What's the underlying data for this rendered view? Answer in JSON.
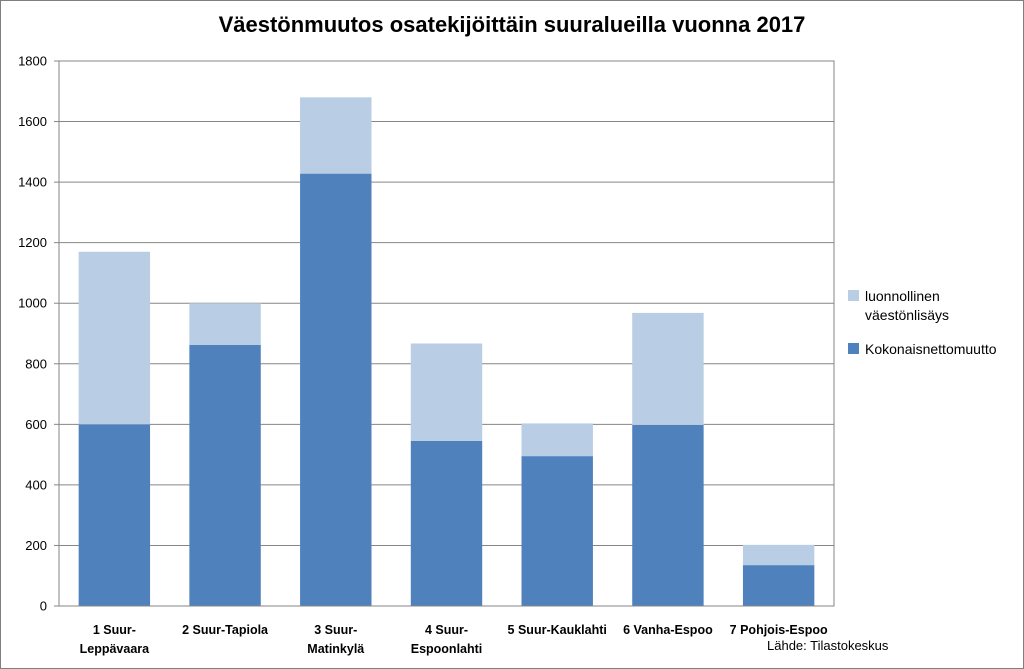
{
  "chart_data": {
    "type": "bar",
    "stacked": true,
    "title": "Väestönmuutos osatekijöittäin suuralueilla vuonna 2017",
    "xlabel": "",
    "ylabel": "",
    "ylim": [
      0,
      1800
    ],
    "yticks": [
      "0",
      "200",
      "400",
      "600",
      "800",
      "1000",
      "1200",
      "1400",
      "1600",
      "1800"
    ],
    "grid": true,
    "legend_position": "right",
    "categories": [
      [
        "1 Suur-",
        "Leppävaara"
      ],
      [
        "2 Suur-Tapiola"
      ],
      [
        "3 Suur-",
        "Matinkylä"
      ],
      [
        "4 Suur-",
        "Espoonlahti"
      ],
      [
        "5 Suur-Kauklahti"
      ],
      [
        "6 Vanha-Espoo"
      ],
      [
        "7 Pohjois-Espoo"
      ]
    ],
    "series": [
      {
        "name": "Kokonaisnettomuutto",
        "color": "#4f81bd",
        "values": [
          600,
          862,
          1428,
          545,
          495,
          598,
          135
        ]
      },
      {
        "name": "luonnollinen väestönlisäys",
        "legend_lines": [
          "luonnollinen",
          "väestönlisäys"
        ],
        "color": "#b9cde5",
        "values": [
          570,
          138,
          252,
          322,
          108,
          370,
          67
        ]
      }
    ],
    "source": "Lähde: Tilastokeskus"
  }
}
